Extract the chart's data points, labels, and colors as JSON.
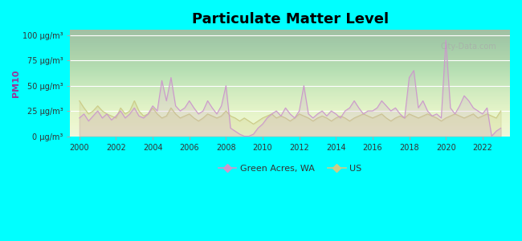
{
  "title": "Particulate Matter Level",
  "ylabel": "PM10",
  "background_color": "#00FFFF",
  "plot_bg_top": "#e8f5e9",
  "plot_bg_bottom": "#f5ffe8",
  "watermark": "City-Data.com",
  "ylim": [
    0,
    105
  ],
  "yticks": [
    0,
    25,
    50,
    75,
    100
  ],
  "ytick_labels": [
    "0 μg/m³",
    "25 μg/m³",
    "50 μg/m³",
    "75 μg/m³",
    "100 μg/m³"
  ],
  "xticks": [
    2000,
    2002,
    2004,
    2006,
    2008,
    2010,
    2012,
    2014,
    2016,
    2018,
    2020,
    2022
  ],
  "legend_labels": [
    "Green Acres, WA",
    "US"
  ],
  "ga_color": "#cc99cc",
  "us_color": "#cccc88",
  "ga_data_x": [
    2000,
    2000.25,
    2000.5,
    2000.75,
    2001,
    2001.25,
    2001.5,
    2001.75,
    2002,
    2002.25,
    2002.5,
    2002.75,
    2003,
    2003.25,
    2003.5,
    2003.75,
    2004,
    2004.25,
    2004.5,
    2004.75,
    2005,
    2005.25,
    2005.5,
    2005.75,
    2006,
    2006.25,
    2006.5,
    2006.75,
    2007,
    2007.25,
    2007.5,
    2007.75,
    2008,
    2008.25,
    2008.5,
    2008.75,
    2009,
    2009.25,
    2009.5,
    2009.75,
    2010,
    2010.25,
    2010.5,
    2010.75,
    2011,
    2011.25,
    2011.5,
    2011.75,
    2012,
    2012.25,
    2012.5,
    2012.75,
    2013,
    2013.25,
    2013.5,
    2013.75,
    2014,
    2014.25,
    2014.5,
    2014.75,
    2015,
    2015.25,
    2015.5,
    2015.75,
    2016,
    2016.25,
    2016.5,
    2016.75,
    2017,
    2017.25,
    2017.5,
    2017.75,
    2018,
    2018.25,
    2018.5,
    2018.75,
    2019,
    2019.25,
    2019.5,
    2019.75,
    2020,
    2020.25,
    2020.5,
    2020.75,
    2021,
    2021.25,
    2021.5,
    2021.75,
    2022,
    2022.25,
    2022.5,
    2022.75,
    2023
  ],
  "ga_data_y": [
    18,
    22,
    15,
    20,
    25,
    18,
    22,
    16,
    20,
    25,
    18,
    22,
    28,
    20,
    18,
    22,
    30,
    25,
    55,
    35,
    58,
    30,
    25,
    28,
    35,
    28,
    22,
    25,
    35,
    28,
    22,
    30,
    50,
    8,
    5,
    2,
    0,
    0,
    2,
    8,
    12,
    18,
    22,
    25,
    20,
    28,
    22,
    18,
    25,
    50,
    22,
    18,
    22,
    25,
    20,
    25,
    22,
    18,
    25,
    28,
    35,
    28,
    22,
    25,
    25,
    28,
    35,
    30,
    25,
    28,
    22,
    18,
    58,
    65,
    28,
    35,
    25,
    20,
    22,
    18,
    95,
    28,
    22,
    30,
    40,
    35,
    28,
    25,
    22,
    28,
    0,
    5,
    8
  ],
  "us_data_x": [
    2000,
    2000.25,
    2000.5,
    2000.75,
    2001,
    2001.25,
    2001.5,
    2001.75,
    2002,
    2002.25,
    2002.5,
    2002.75,
    2003,
    2003.25,
    2003.5,
    2003.75,
    2004,
    2004.25,
    2004.5,
    2004.75,
    2005,
    2005.25,
    2005.5,
    2005.75,
    2006,
    2006.25,
    2006.5,
    2006.75,
    2007,
    2007.25,
    2007.5,
    2007.75,
    2008,
    2008.25,
    2008.5,
    2008.75,
    2009,
    2009.25,
    2009.5,
    2009.75,
    2010,
    2010.25,
    2010.5,
    2010.75,
    2011,
    2011.25,
    2011.5,
    2011.75,
    2012,
    2012.25,
    2012.5,
    2012.75,
    2013,
    2013.25,
    2013.5,
    2013.75,
    2014,
    2014.25,
    2014.5,
    2014.75,
    2015,
    2015.25,
    2015.5,
    2015.75,
    2016,
    2016.25,
    2016.5,
    2016.75,
    2017,
    2017.25,
    2017.5,
    2017.75,
    2018,
    2018.25,
    2018.5,
    2018.75,
    2019,
    2019.25,
    2019.5,
    2019.75,
    2020,
    2020.25,
    2020.5,
    2020.75,
    2021,
    2021.25,
    2021.5,
    2021.75,
    2022,
    2022.25,
    2022.5,
    2022.75,
    2023
  ],
  "us_data_y": [
    35,
    28,
    22,
    25,
    30,
    25,
    22,
    20,
    18,
    28,
    22,
    25,
    35,
    25,
    20,
    22,
    28,
    22,
    18,
    20,
    28,
    22,
    18,
    20,
    22,
    18,
    15,
    18,
    22,
    20,
    18,
    20,
    25,
    20,
    18,
    15,
    18,
    15,
    12,
    15,
    18,
    20,
    22,
    18,
    20,
    18,
    15,
    18,
    22,
    20,
    18,
    15,
    18,
    20,
    18,
    15,
    18,
    20,
    18,
    15,
    18,
    20,
    22,
    20,
    18,
    20,
    22,
    18,
    15,
    18,
    20,
    18,
    22,
    20,
    18,
    20,
    22,
    20,
    18,
    15,
    18,
    20,
    22,
    20,
    18,
    20,
    22,
    18,
    20,
    22,
    20,
    18,
    25
  ]
}
